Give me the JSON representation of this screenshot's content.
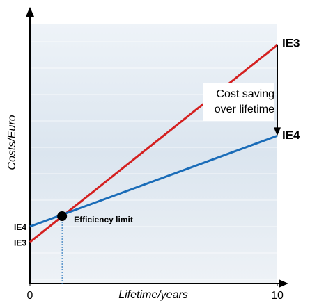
{
  "chart_data": {
    "type": "line",
    "x_label": "Lifetime/years",
    "y_label": "Costs/Euro",
    "x": [
      0,
      10
    ],
    "xlim": [
      0,
      10
    ],
    "xticks": [
      0,
      10
    ],
    "ylim": [
      0,
      100
    ],
    "series": [
      {
        "name": "IE3",
        "color": "#d42020",
        "values": [
          16,
          92
        ]
      },
      {
        "name": "IE4",
        "color": "#1a6cb8",
        "values": [
          22,
          57
        ]
      }
    ],
    "annotations": [
      {
        "text": "Efficiency limit",
        "x": 1.3,
        "y": 26
      }
    ],
    "saving_label": [
      "Cost saving",
      "over lifetime"
    ]
  }
}
